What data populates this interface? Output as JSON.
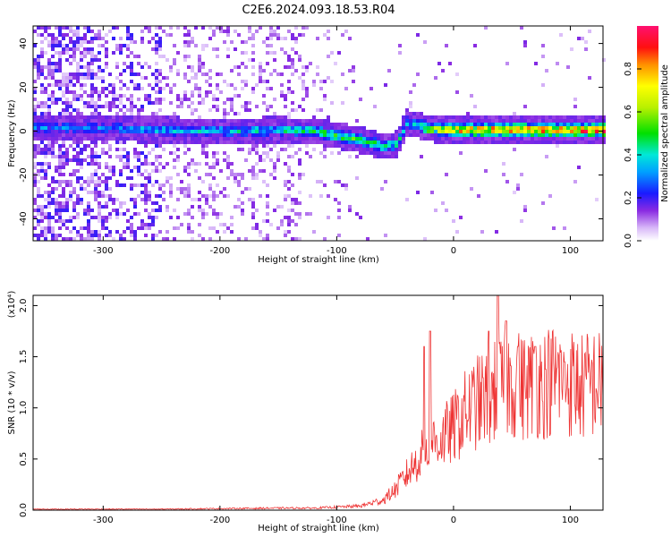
{
  "title": "C2E6.2024.093.18.53.R04",
  "chart_data": [
    {
      "type": "heatmap",
      "xlabel": "Height of straight line (km)",
      "ylabel": "Frequency (Hz)",
      "xlim": [
        -360,
        128
      ],
      "ylim": [
        -50,
        48
      ],
      "xticks": [
        -300,
        -200,
        -100,
        0,
        100
      ],
      "yticks": [
        -40,
        -20,
        0,
        20,
        40
      ],
      "colorbar": {
        "label": "Normalized spectral amplitude",
        "range": [
          0,
          1
        ],
        "ticks": [
          "0.0",
          "0.2",
          "0.4",
          "0.6",
          "0.8"
        ],
        "tick_values": [
          0,
          0.2,
          0.4,
          0.6,
          0.8
        ]
      },
      "ridge": [
        {
          "x": -300,
          "freq": 1.5,
          "amp": 0.3
        },
        {
          "x": -250,
          "freq": 0.5,
          "amp": 0.35
        },
        {
          "x": -200,
          "freq": 0.0,
          "amp": 0.38
        },
        {
          "x": -150,
          "freq": 0.5,
          "amp": 0.4
        },
        {
          "x": -120,
          "freq": 0.0,
          "amp": 0.45
        },
        {
          "x": -100,
          "freq": -2.0,
          "amp": 0.5
        },
        {
          "x": -80,
          "freq": -4.0,
          "amp": 0.5
        },
        {
          "x": -60,
          "freq": -7.0,
          "amp": 0.45
        },
        {
          "x": -48,
          "freq": -6.0,
          "amp": 0.4
        },
        {
          "x": -40,
          "freq": 4.0,
          "amp": 0.35
        },
        {
          "x": -20,
          "freq": 1.0,
          "amp": 0.6
        },
        {
          "x": 0,
          "freq": 0.5,
          "amp": 0.75
        },
        {
          "x": 50,
          "freq": 0.5,
          "amp": 0.85
        },
        {
          "x": 100,
          "freq": 0.5,
          "amp": 0.85
        },
        {
          "x": 128,
          "freq": 0.5,
          "amp": 0.9
        }
      ]
    },
    {
      "type": "line",
      "xlabel": "Height of straight line (km)",
      "ylabel": "SNR (10 * v/v)",
      "yscale_label": "(x10⁴)",
      "xlim": [
        -360,
        128
      ],
      "ylim": [
        0,
        2.1
      ],
      "xticks": [
        -300,
        -200,
        -100,
        0,
        100
      ],
      "yticks": [
        "0.0",
        "0.5",
        "1.0",
        "1.5",
        "2.0"
      ],
      "ytick_values": [
        0,
        0.5,
        1.0,
        1.5,
        2.0
      ],
      "color": "#ee3333",
      "series": [
        {
          "x": [
            -360,
            -300,
            -250,
            -200,
            -150,
            -120,
            -100,
            -80,
            -60,
            -50,
            -40,
            -30,
            -20,
            -10,
            0,
            10,
            20,
            30,
            40,
            50,
            60,
            70,
            80,
            90,
            100,
            110,
            120,
            128
          ],
          "y": [
            0.01,
            0.01,
            0.01,
            0.015,
            0.02,
            0.02,
            0.03,
            0.04,
            0.1,
            0.2,
            0.35,
            0.5,
            0.65,
            0.7,
            0.8,
            0.95,
            1.05,
            1.1,
            1.2,
            1.25,
            1.2,
            1.25,
            1.25,
            1.3,
            1.25,
            1.2,
            1.25,
            1.2
          ]
        }
      ],
      "peaks": [
        {
          "x": -25,
          "y": 1.6
        },
        {
          "x": -20,
          "y": 1.75
        },
        {
          "x": 30,
          "y": 1.75
        },
        {
          "x": 38,
          "y": 2.1
        },
        {
          "x": 45,
          "y": 1.85
        },
        {
          "x": 55,
          "y": 1.6
        },
        {
          "x": 70,
          "y": 1.6
        },
        {
          "x": 95,
          "y": 1.45
        }
      ]
    }
  ]
}
